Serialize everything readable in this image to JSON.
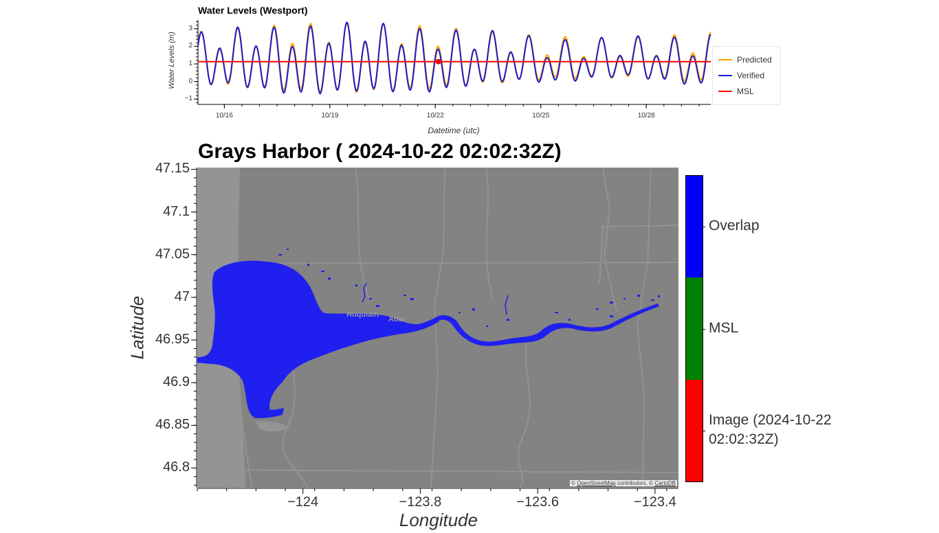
{
  "chart_data": [
    {
      "type": "line",
      "title": "Water Levels (Westport)",
      "xlabel": "Datetime (utc)",
      "ylabel": "Water Levels (m)",
      "x_range": [
        "2024-10-15 06:00",
        "2024-10-29 20:00"
      ],
      "ylim": [
        -1.3,
        3.5
      ],
      "x_ticks": [
        "10/16",
        "10/19",
        "10/22",
        "10/25",
        "10/28"
      ],
      "y_ticks": [
        "−1",
        "0",
        "1",
        "2",
        "3"
      ],
      "legend_position": "right",
      "series": [
        {
          "name": "Predicted",
          "color": "#ffa500"
        },
        {
          "name": "Verified",
          "color": "#1a1acc"
        },
        {
          "name": "MSL",
          "color": "#ff0000",
          "value": 1.13
        }
      ],
      "marker": {
        "datetime": "2024-10-22 02:02:32",
        "value": 1.13,
        "color": "#ff0000"
      }
    },
    {
      "type": "heatmap",
      "title": "Grays Harbor ( 2024-10-22 02:02:32Z)",
      "xlabel": "Longitude",
      "ylabel": "Latitude",
      "xlim": [
        -124.18,
        -123.36
      ],
      "ylim": [
        46.777,
        47.152
      ],
      "x_ticks": [
        "−124",
        "−123.8",
        "−123.6",
        "−123.4"
      ],
      "y_ticks": [
        "47.15",
        "47.1",
        "47.05",
        "47",
        "46.95",
        "46.9",
        "46.85",
        "46.8"
      ],
      "attribution": {
        "prefix": "© ",
        "osm": "OpenStreetMap",
        "middle": " contributors, © ",
        "carto": "CartoDB"
      },
      "place_labels": [
        "Hoquiam",
        "Aber"
      ],
      "colorbar": [
        {
          "label": "Overlap",
          "color": "#0000ff"
        },
        {
          "label": "MSL",
          "color": "#008000"
        },
        {
          "label": "Image (2024-10-22 02:02:32Z)",
          "color": "#ff0000"
        }
      ],
      "water_color": "#1f1ff0"
    }
  ]
}
